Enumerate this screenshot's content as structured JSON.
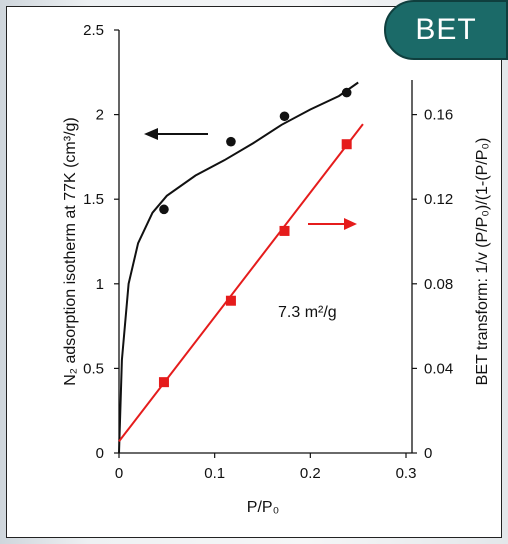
{
  "badge": {
    "label": "BET"
  },
  "chart_data": {
    "type": "scatter",
    "xlabel": "P/P₀",
    "ylabel_left": "N₂ adsorption isotherm at 77K (cm³/g)",
    "ylabel_right": "BET transform: 1/v (P/P₀)/(1-(P/P₀)",
    "xlim": [
      0,
      0.3
    ],
    "ylim_left": [
      0,
      2.5
    ],
    "ylim_right": [
      0,
      0.2
    ],
    "x_ticks": [
      "0",
      "0.1",
      "0.2",
      "0.3"
    ],
    "y_left_ticks": [
      "0",
      "0.5",
      "1",
      "1.5",
      "2",
      "2.5"
    ],
    "y_right_ticks": [
      "0",
      "0.04",
      "0.08",
      "0.12",
      "0.16"
    ],
    "annotation": "7.3 m²/g",
    "series": [
      {
        "axis": "left",
        "color": "#111111",
        "marker": "circle",
        "points": [
          [
            0.047,
            1.44
          ],
          [
            0.117,
            1.84
          ],
          [
            0.173,
            1.99
          ],
          [
            0.238,
            2.13
          ]
        ],
        "fit_curve": [
          [
            0.0,
            0.0
          ],
          [
            0.003,
            0.55
          ],
          [
            0.01,
            1.0
          ],
          [
            0.02,
            1.24
          ],
          [
            0.035,
            1.42
          ],
          [
            0.05,
            1.52
          ],
          [
            0.08,
            1.64
          ],
          [
            0.11,
            1.73
          ],
          [
            0.14,
            1.83
          ],
          [
            0.17,
            1.94
          ],
          [
            0.2,
            2.03
          ],
          [
            0.23,
            2.11
          ],
          [
            0.25,
            2.19
          ]
        ]
      },
      {
        "axis": "right",
        "color": "#e51c1c",
        "marker": "square",
        "points": [
          [
            0.047,
            0.0335
          ],
          [
            0.117,
            0.072
          ],
          [
            0.173,
            0.105
          ],
          [
            0.238,
            0.146
          ]
        ],
        "fit_line": [
          [
            0.0,
            0.0055
          ],
          [
            0.255,
            0.1555
          ]
        ]
      }
    ]
  }
}
